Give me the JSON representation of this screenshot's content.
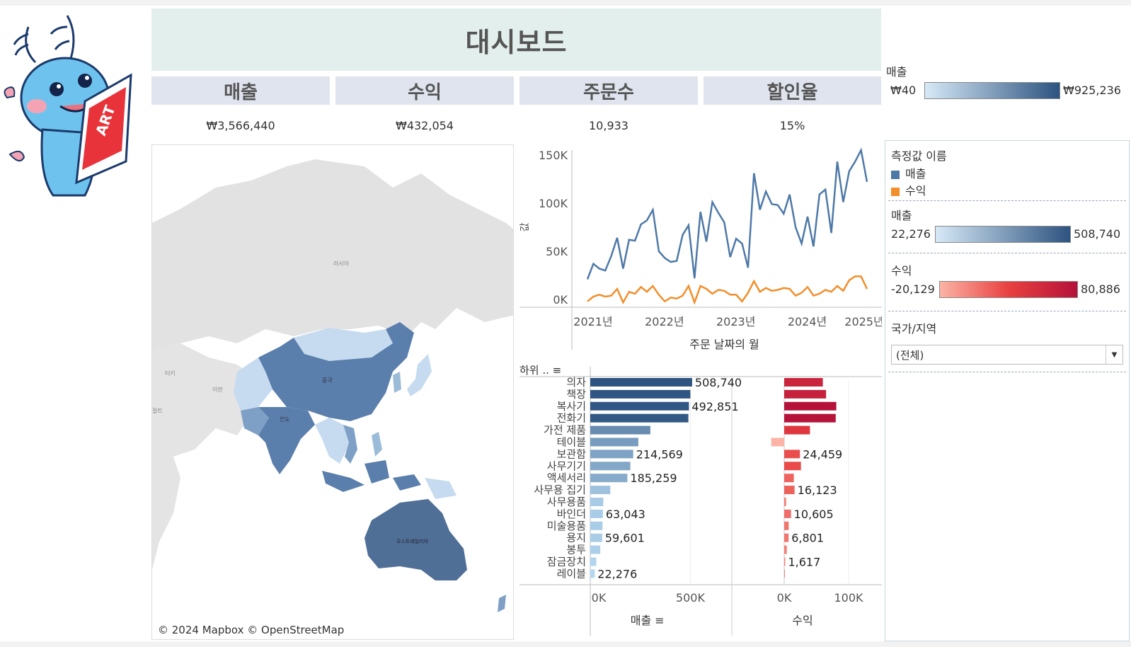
{
  "header": {
    "title": "대시보드"
  },
  "kpis": [
    {
      "label": "매출",
      "value": "₩3,566,440"
    },
    {
      "label": "수익",
      "value": "₩432,054"
    },
    {
      "label": "주문수",
      "value": "10,933"
    },
    {
      "label": "할인율",
      "value": "15%"
    }
  ],
  "mascot": {
    "badge_text": "ART"
  },
  "map": {
    "credit": "© 2024 Mapbox © OpenStreetMap",
    "place_labels": [
      "러시아",
      "중국",
      "터키",
      "이란",
      "인도",
      "오스트레일리아",
      "질트"
    ],
    "colors": {
      "low": "#c6dbef",
      "high": "#4a6f9a",
      "land": "#e0e0e0",
      "water": "#ffffff"
    }
  },
  "legend_top": {
    "title": "매출",
    "min": "₩40",
    "max": "₩925,236"
  },
  "side": {
    "measure_legend": {
      "title": "측정값 이름",
      "items": [
        {
          "label": "매출",
          "color": "#4e79a7"
        },
        {
          "label": "수익",
          "color": "#f28e2b"
        }
      ]
    },
    "sales_ramp": {
      "title": "매출",
      "min": "22,276",
      "max": "508,740"
    },
    "profit_ramp": {
      "title": "수익",
      "min": "-20,129",
      "max": "80,886"
    },
    "filter": {
      "title": "국가/지역",
      "value": "(전체)"
    }
  },
  "line_axes": {
    "y_ticks": [
      "150K",
      "100K",
      "50K",
      "0K"
    ],
    "x_ticks": [
      "2021년",
      "2022년",
      "2023년",
      "2024년",
      "2025년"
    ],
    "y_title": "값",
    "x_title": "주문 날짜의 월"
  },
  "bar_axes": {
    "header_label": "하위 ..",
    "sales_ticks": [
      "0K",
      "500K"
    ],
    "profit_ticks": [
      "0K",
      "100K"
    ],
    "sales_title": "매출",
    "profit_title": "수익"
  },
  "chart_data": [
    {
      "type": "line",
      "x": [
        "2021-01",
        "2021-02",
        "2021-03",
        "2021-04",
        "2021-05",
        "2021-06",
        "2021-07",
        "2021-08",
        "2021-09",
        "2021-10",
        "2021-11",
        "2021-12",
        "2022-01",
        "2022-02",
        "2022-03",
        "2022-04",
        "2022-05",
        "2022-06",
        "2022-07",
        "2022-08",
        "2022-09",
        "2022-10",
        "2022-11",
        "2022-12",
        "2023-01",
        "2023-02",
        "2023-03",
        "2023-04",
        "2023-05",
        "2023-06",
        "2023-07",
        "2023-08",
        "2023-09",
        "2023-10",
        "2023-11",
        "2023-12",
        "2024-01",
        "2024-02",
        "2024-03",
        "2024-04",
        "2024-05",
        "2024-06",
        "2024-07",
        "2024-08",
        "2024-09",
        "2024-10",
        "2024-11",
        "2024-12"
      ],
      "series": [
        {
          "name": "매출",
          "values": [
            21000,
            37000,
            32000,
            30000,
            45000,
            64000,
            32000,
            62000,
            61000,
            78000,
            82000,
            93000,
            50000,
            43000,
            39000,
            40000,
            67000,
            77000,
            22000,
            91000,
            60000,
            101000,
            90000,
            80000,
            44000,
            63000,
            58000,
            33000,
            131000,
            93000,
            112000,
            99000,
            98000,
            89000,
            109000,
            75000,
            58000,
            86000,
            55000,
            109000,
            114000,
            69000,
            143000,
            101000,
            133000,
            143000,
            155000,
            122000
          ]
        },
        {
          "name": "수익",
          "values": [
            -2000,
            3000,
            5000,
            3000,
            4000,
            11000,
            -3000,
            8000,
            6000,
            13000,
            8000,
            14000,
            5000,
            -2000,
            2000,
            1000,
            4000,
            14000,
            -3000,
            14000,
            11000,
            6000,
            10000,
            9000,
            5000,
            5000,
            -2000,
            7000,
            19000,
            8000,
            12000,
            9000,
            10000,
            12000,
            11000,
            4000,
            7000,
            13000,
            4000,
            6000,
            10000,
            8000,
            14000,
            9000,
            20000,
            24000,
            24000,
            11000
          ]
        }
      ],
      "ylim": [
        0,
        155000
      ]
    },
    {
      "type": "bar",
      "categories": [
        "의자",
        "책장",
        "복사기",
        "전화기",
        "가전 제품",
        "테이블",
        "보관함",
        "사무기기",
        "액세서리",
        "사무용 집기",
        "사무용품",
        "바인더",
        "미술용품",
        "용지",
        "봉투",
        "잠금장치",
        "레이블"
      ],
      "series": [
        {
          "name": "매출",
          "values": [
            508740,
            500000,
            492851,
            490000,
            300000,
            240000,
            214569,
            200000,
            185259,
            100000,
            65000,
            63043,
            61000,
            59601,
            50000,
            30000,
            22276
          ]
        },
        {
          "name": "수익",
          "values": [
            60000,
            65000,
            80886,
            80000,
            40000,
            -20129,
            24459,
            26000,
            15000,
            16123,
            3000,
            10605,
            7000,
            6801,
            4000,
            1617,
            1000
          ]
        }
      ],
      "data_labels": {
        "매출": [
          "508,740",
          "",
          "492,851",
          "",
          "",
          "",
          "214,569",
          "",
          "185,259",
          "",
          "",
          "63,043",
          "",
          "59,601",
          "",
          "",
          "22,276"
        ],
        "수익": [
          "",
          "",
          "",
          "",
          "",
          "",
          "24,459",
          "",
          "",
          "16,123",
          "",
          "10,605",
          "",
          "6,801",
          "",
          "1,617",
          ""
        ]
      }
    }
  ]
}
